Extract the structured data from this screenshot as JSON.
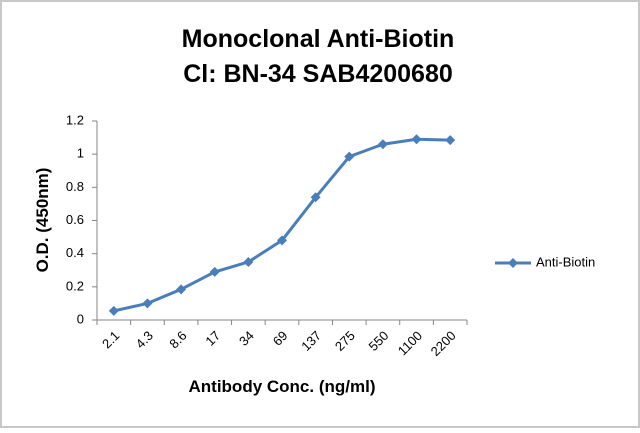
{
  "chart_data": {
    "type": "line",
    "title": "Monoclonal Anti-Biotin",
    "subtitle": "Cl: BN-34 SAB4200680",
    "x_label": "Antibody Conc. (ng/ml)",
    "y_label": "O.D. (450nm)",
    "categories": [
      "2.1",
      "4.3",
      "8.6",
      "17",
      "34",
      "69",
      "137",
      "275",
      "550",
      "1100",
      "2200"
    ],
    "series": [
      {
        "name": "Anti-Biotin",
        "color": "#4a7ebb",
        "values": [
          0.055,
          0.1,
          0.185,
          0.29,
          0.35,
          0.48,
          0.74,
          0.985,
          1.06,
          1.09,
          1.085
        ]
      }
    ],
    "ylim": [
      0,
      1.2
    ],
    "yticks": [
      0,
      0.2,
      0.4,
      0.6,
      0.8,
      1,
      1.2
    ],
    "grid": false,
    "legend": "right"
  }
}
